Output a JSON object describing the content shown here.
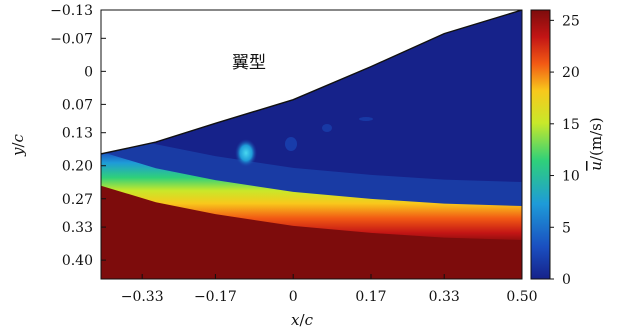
{
  "chart_data": {
    "type": "heatmap",
    "title": "",
    "annotation": "翼型",
    "xlabel_base": "x",
    "xlabel_sep": "/",
    "xlabel_den": "c",
    "ylabel_base": "y",
    "ylabel_sep": "/",
    "ylabel_den": "c",
    "colorbar_label_main": "u",
    "colorbar_label_unit": "/(m/s)",
    "x_ticks": [
      "−0.33",
      "−0.17",
      "0",
      "0.17",
      "0.33",
      "0.50"
    ],
    "x_tick_values": [
      -0.33,
      -0.17,
      0,
      0.17,
      0.33,
      0.5
    ],
    "y_ticks": [
      "−0.13",
      "−0.07",
      "0",
      "0.07",
      "0.13",
      "0.20",
      "0.27",
      "0.33",
      "0.40"
    ],
    "y_tick_values": [
      -0.13,
      -0.07,
      0,
      0.07,
      0.13,
      0.2,
      0.27,
      0.33,
      0.4
    ],
    "xlim": [
      -0.42,
      0.5
    ],
    "ylim": [
      -0.13,
      0.44
    ],
    "y_inverted": true,
    "colorbar_ticks": [
      "0",
      "5",
      "10",
      "15",
      "20",
      "25"
    ],
    "colorbar_tick_values": [
      0,
      5,
      10,
      15,
      20,
      25
    ],
    "colorbar_range": [
      0,
      26
    ],
    "colormap": [
      "#16228a",
      "#1a4fc0",
      "#1e9bd8",
      "#2fd07a",
      "#c8e82a",
      "#f8c81c",
      "#f25a14",
      "#c31515",
      "#7d0c0c"
    ],
    "airfoil_surface": {
      "x": [
        -0.42,
        -0.3,
        -0.17,
        0,
        0.17,
        0.33,
        0.5
      ],
      "y": [
        0.175,
        0.15,
        0.11,
        0.06,
        -0.01,
        -0.08,
        -0.13
      ]
    },
    "shear_layer": {
      "x": [
        -0.42,
        -0.3,
        -0.17,
        0,
        0.17,
        0.33,
        0.5
      ],
      "y": [
        0.2,
        0.235,
        0.26,
        0.285,
        0.3,
        0.31,
        0.315
      ]
    },
    "freestream_velocity": 25,
    "wake_velocity": 1.5
  }
}
